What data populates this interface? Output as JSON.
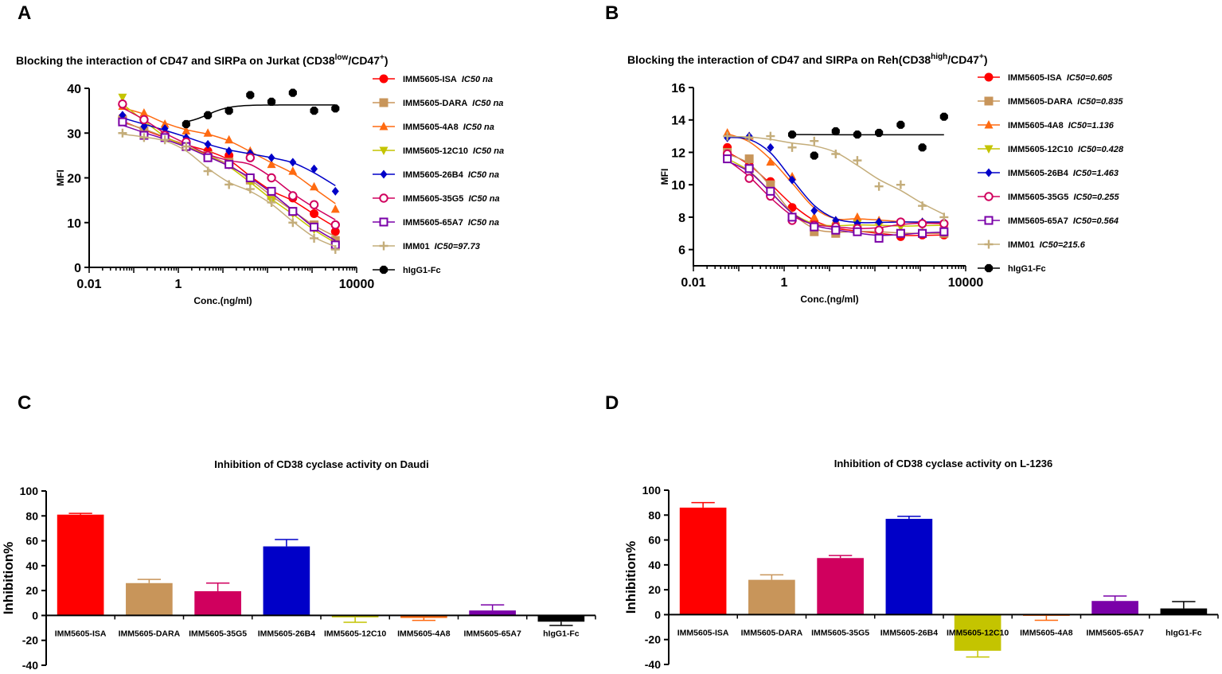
{
  "colors": {
    "ISA": "#ff0000",
    "DARA": "#c8955a",
    "4A8": "#ff6a10",
    "12C10": "#c4c400",
    "26B4": "#0000c8",
    "35G5": "#d0005e",
    "65A7": "#7a00a8",
    "IMM01": "#c4ad7a",
    "hIgG1": "#000000"
  },
  "chart_data": [
    {
      "panel_label": "A",
      "type": "scatter",
      "title": "Blocking the interaction of CD47 and SIRPa on Jurkat (CD38",
      "title_sup1": "low",
      "title_mid": "/CD47",
      "title_sup2": "+",
      "title_end": ")",
      "xlabel": "Conc.(ng/ml)",
      "ylabel": "MFI",
      "xscale": "log",
      "xlim": [
        0.01,
        10000
      ],
      "ylim": [
        0,
        40
      ],
      "xticks": [
        0.01,
        1,
        10000
      ],
      "xtick_labels": [
        "0.01",
        "1",
        "10000"
      ],
      "yticks": [
        0,
        10,
        20,
        30,
        40
      ],
      "x": [
        0.056,
        0.17,
        0.5,
        1.5,
        4.6,
        13.7,
        41,
        123,
        370,
        1111,
        3333
      ],
      "series": [
        {
          "name": "IMM5605-ISA",
          "ic50_label": "IC50 na",
          "color_key": "ISA",
          "marker": "circle",
          "values": [
            33.5,
            30,
            29.5,
            27,
            26,
            25,
            20,
            16.5,
            15.5,
            12,
            8
          ]
        },
        {
          "name": "IMM5605-DARA",
          "ic50_label": "IC50 na",
          "color_key": "DARA",
          "marker": "square",
          "values": [
            33,
            30.5,
            29.5,
            27,
            25,
            23.5,
            19.5,
            16,
            12.5,
            9.5,
            6
          ]
        },
        {
          "name": "IMM5605-4A8",
          "ic50_label": "IC50 na",
          "color_key": "4A8",
          "marker": "triangle",
          "values": [
            36,
            34.5,
            32,
            30.5,
            30,
            28.5,
            26,
            23,
            21.5,
            18,
            13
          ]
        },
        {
          "name": "IMM5605-12C10",
          "ic50_label": "IC50 na",
          "color_key": "12C10",
          "marker": "triangle-down",
          "values": [
            38,
            32,
            29,
            27,
            25,
            23,
            19,
            15,
            12,
            8.5,
            4.5
          ]
        },
        {
          "name": "IMM5605-26B4",
          "ic50_label": "IC50 na",
          "color_key": "26B4",
          "marker": "diamond",
          "values": [
            34,
            31.5,
            31,
            29,
            27.5,
            26,
            25.5,
            24.5,
            23.5,
            22,
            17
          ]
        },
        {
          "name": "IMM5605-35G5",
          "ic50_label": "IC50 na",
          "color_key": "35G5",
          "marker": "circle-open",
          "values": [
            36.5,
            33,
            29.5,
            28,
            25,
            23,
            24.5,
            20,
            16,
            14,
            9.5
          ]
        },
        {
          "name": "IMM5605-65A7",
          "ic50_label": "IC50 na",
          "color_key": "65A7",
          "marker": "square-open",
          "values": [
            32.5,
            29.5,
            29,
            27,
            24.5,
            23,
            20,
            17,
            12.5,
            9,
            5
          ]
        },
        {
          "name": "IMM01",
          "ic50_label": "IC50=97.73",
          "color_key": "IMM01",
          "marker": "plus",
          "values": [
            30,
            29,
            28.5,
            27,
            21.5,
            18.5,
            17.5,
            14.5,
            10,
            6.5,
            4
          ]
        },
        {
          "name": "hIgG1-Fc",
          "ic50_label": "",
          "color_key": "hIgG1",
          "marker": "hexagon",
          "x": [
            1.5,
            4.6,
            13.7,
            41,
            123,
            370,
            1111,
            3333
          ],
          "values": [
            32,
            34,
            35,
            38.5,
            37,
            39,
            35,
            35.5
          ]
        }
      ]
    },
    {
      "panel_label": "B",
      "type": "scatter",
      "title": "Blocking the interaction of CD47 and SIRPa on Reh(CD38",
      "title_sup1": "high",
      "title_mid": "/CD47",
      "title_sup2": "+",
      "title_end": ")",
      "xlabel": "Conc.(ng/ml)",
      "ylabel": "MFI",
      "xscale": "log",
      "xlim": [
        0.01,
        10000
      ],
      "ylim": [
        5,
        16
      ],
      "xticks": [
        0.01,
        1,
        10000
      ],
      "xtick_labels": [
        "0.01",
        "1",
        "10000"
      ],
      "yticks": [
        6,
        8,
        10,
        12,
        14,
        16
      ],
      "x": [
        0.056,
        0.17,
        0.5,
        1.5,
        4.6,
        13.7,
        41,
        123,
        370,
        1111,
        3333
      ],
      "series": [
        {
          "name": "IMM5605-ISA",
          "ic50_label": "IC50=0.605",
          "color_key": "ISA",
          "marker": "circle",
          "values": [
            12.3,
            11.2,
            10.2,
            8.6,
            7.7,
            7.2,
            7.2,
            7.0,
            6.8,
            6.9,
            6.9
          ]
        },
        {
          "name": "IMM5605-DARA",
          "ic50_label": "IC50=0.835",
          "color_key": "DARA",
          "marker": "square",
          "values": [
            12.0,
            11.6,
            10.0,
            8.0,
            7.1,
            7.0,
            7.2,
            7.1,
            7.0,
            7.0,
            7.0
          ]
        },
        {
          "name": "IMM5605-4A8",
          "ic50_label": "IC50=1.136",
          "color_key": "4A8",
          "marker": "triangle",
          "values": [
            13.2,
            13.0,
            11.4,
            10.5,
            8.0,
            7.8,
            8.0,
            7.8,
            7.7,
            7.7,
            7.6
          ]
        },
        {
          "name": "IMM5605-12C10",
          "ic50_label": "IC50=0.428",
          "color_key": "12C10",
          "marker": "triangle-down",
          "values": [
            11.8,
            11.0,
            9.6,
            8.0,
            7.5,
            7.4,
            7.6,
            7.5,
            7.4,
            7.5,
            7.5
          ]
        },
        {
          "name": "IMM5605-26B4",
          "ic50_label": "IC50=1.463",
          "color_key": "26B4",
          "marker": "diamond",
          "values": [
            12.9,
            13.0,
            12.3,
            10.3,
            8.4,
            7.8,
            7.6,
            7.7,
            7.7,
            7.7,
            7.7
          ]
        },
        {
          "name": "IMM5605-35G5",
          "ic50_label": "IC50=0.255",
          "color_key": "35G5",
          "marker": "circle-open",
          "values": [
            11.9,
            10.4,
            9.3,
            7.8,
            7.5,
            7.4,
            7.3,
            7.2,
            7.7,
            7.6,
            7.6
          ]
        },
        {
          "name": "IMM5605-65A7",
          "ic50_label": "IC50=0.564",
          "color_key": "65A7",
          "marker": "square-open",
          "values": [
            11.6,
            11.0,
            9.6,
            8.0,
            7.4,
            7.2,
            7.1,
            6.7,
            7.0,
            7.0,
            7.1
          ]
        },
        {
          "name": "IMM01",
          "ic50_label": "IC50=215.6",
          "color_key": "IMM01",
          "marker": "plus",
          "values": [
            13.0,
            12.9,
            13.0,
            12.3,
            12.7,
            11.9,
            11.5,
            9.9,
            10.0,
            8.7,
            8.0
          ]
        },
        {
          "name": "hIgG1-Fc",
          "ic50_label": "",
          "color_key": "hIgG1",
          "marker": "hexagon",
          "x": [
            1.5,
            4.6,
            13.7,
            41,
            123,
            370,
            1111,
            3333
          ],
          "values": [
            13.1,
            11.8,
            13.3,
            13.1,
            13.2,
            13.7,
            12.3,
            14.2
          ]
        }
      ]
    },
    {
      "panel_label": "C",
      "type": "bar",
      "title": "Inhibition of CD38 cyclase activity on Daudi",
      "ylabel": "Inhibition%",
      "ylim": [
        -40,
        100
      ],
      "yticks": [
        -40,
        -20,
        0,
        20,
        40,
        60,
        80,
        100
      ],
      "categories": [
        "IMM5605-ISA",
        "IMM5605-DARA",
        "IMM5605-35G5",
        "IMM5605-26B4",
        "IMM5605-12C10",
        "IMM5605-4A8",
        "IMM5605-65A7",
        "hIgG1-Fc"
      ],
      "color_keys": [
        "ISA",
        "DARA",
        "35G5",
        "26B4",
        "12C10",
        "4A8",
        "65A7",
        "hIgG1"
      ],
      "values": [
        81,
        26,
        19.5,
        55.5,
        -1.5,
        -2,
        4,
        -5
      ],
      "errors": [
        1,
        3,
        6.5,
        5.5,
        4,
        2,
        4.5,
        3
      ]
    },
    {
      "panel_label": "D",
      "type": "bar",
      "title": "Inhibition of CD38 cyclase activity on L-1236",
      "ylabel": "Inhibition%",
      "ylim": [
        -40,
        100
      ],
      "yticks": [
        -40,
        -20,
        0,
        20,
        40,
        60,
        80,
        100
      ],
      "categories": [
        "IMM5605-ISA",
        "IMM5605-DARA",
        "IMM5605-35G5",
        "IMM5605-26B4",
        "IMM5605-12C10",
        "IMM5605-4A8",
        "IMM5605-65A7",
        "hIgG1-Fc"
      ],
      "color_keys": [
        "ISA",
        "DARA",
        "35G5",
        "26B4",
        "12C10",
        "4A8",
        "65A7",
        "hIgG1"
      ],
      "values": [
        86,
        28,
        45.5,
        77,
        -29,
        -0.5,
        11,
        5
      ],
      "errors": [
        4,
        4,
        2,
        2,
        5,
        4,
        4,
        5.5
      ]
    }
  ]
}
